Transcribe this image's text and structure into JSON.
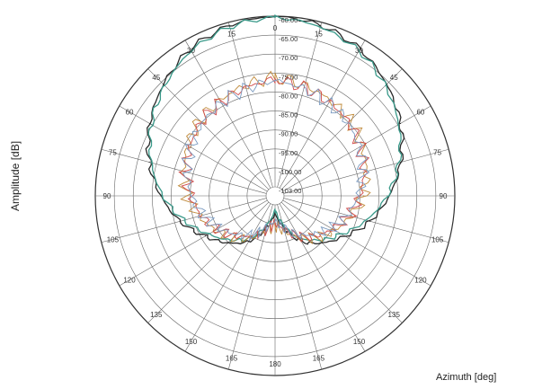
{
  "chart_data": {
    "type": "polar-line",
    "ylabel": "Amplitude [dB]",
    "xlabel": "Azimuth  [deg]",
    "angle_ticks_deg": [
      0,
      15,
      30,
      45,
      60,
      75,
      90,
      105,
      120,
      135,
      150,
      165,
      180,
      195,
      210,
      225,
      240,
      255,
      270,
      285,
      300,
      315,
      330,
      345
    ],
    "angle_tick_labels": [
      "0",
      "15",
      "30",
      "45",
      "60",
      "75",
      "90",
      "105",
      "120",
      "135",
      "150",
      "165",
      "180",
      "165",
      "150",
      "135",
      "120",
      "105",
      "90",
      "75",
      "60",
      "45",
      "30",
      "15"
    ],
    "radial_labels": [
      "-60.00",
      "-65.00",
      "-70.00",
      "-75.00",
      "-80.00",
      "-85.00",
      "-90.00",
      "-95.00",
      "-100.00",
      "-103.00"
    ],
    "radial_range_db": [
      -103,
      -60
    ],
    "grid": true,
    "series": [
      {
        "color": "#2a2a2a",
        "angles": [
          0,
          15,
          30,
          45,
          60,
          75,
          90,
          105,
          120,
          135,
          150,
          165,
          180,
          195,
          210,
          225,
          240,
          255,
          270,
          285,
          300,
          315,
          330,
          345
        ],
        "values": [
          -60.0,
          -60.8,
          -62.5,
          -65.5,
          -68.8,
          -72.5,
          -76.5,
          -80.5,
          -85.0,
          -88.5,
          -92.0,
          -97.0,
          -101.0,
          -97.0,
          -92.0,
          -88.5,
          -85.0,
          -80.5,
          -76.5,
          -72.5,
          -68.8,
          -65.5,
          -62.5,
          -60.8
        ]
      },
      {
        "color": "#3a9a8a",
        "angles": [
          0,
          15,
          30,
          45,
          60,
          75,
          90,
          105,
          120,
          135,
          150,
          165,
          180,
          195,
          210,
          225,
          240,
          255,
          270,
          285,
          300,
          315,
          330,
          345
        ],
        "values": [
          -60.3,
          -61.2,
          -63.0,
          -66.0,
          -69.3,
          -73.0,
          -77.0,
          -81.5,
          -86.0,
          -89.5,
          -93.0,
          -98.0,
          -102.0,
          -98.0,
          -93.0,
          -89.5,
          -86.0,
          -81.5,
          -77.0,
          -73.0,
          -69.3,
          -66.0,
          -63.0,
          -61.2
        ]
      },
      {
        "color": "#c08a3a",
        "angles": [
          0,
          15,
          30,
          45,
          60,
          75,
          90,
          105,
          120,
          135,
          150,
          165,
          180,
          195,
          210,
          225,
          240,
          255,
          270,
          285,
          300,
          315,
          330,
          345
        ],
        "values": [
          -75.5,
          -76.5,
          -77.5,
          -78.5,
          -80.0,
          -81.5,
          -83.0,
          -85.5,
          -88.0,
          -90.5,
          -93.0,
          -96.0,
          -98.0,
          -96.0,
          -93.0,
          -90.5,
          -88.0,
          -85.5,
          -83.0,
          -81.5,
          -80.0,
          -78.5,
          -77.5,
          -76.5
        ]
      },
      {
        "color": "#d04a4a",
        "angles": [
          0,
          15,
          30,
          45,
          60,
          75,
          90,
          105,
          120,
          135,
          150,
          165,
          180,
          195,
          210,
          225,
          240,
          255,
          270,
          285,
          300,
          315,
          330,
          345
        ],
        "values": [
          -76.0,
          -77.0,
          -78.0,
          -79.0,
          -80.5,
          -82.0,
          -84.0,
          -86.0,
          -88.5,
          -91.0,
          -93.5,
          -96.5,
          -98.5,
          -96.5,
          -93.5,
          -91.0,
          -88.5,
          -86.0,
          -84.0,
          -82.0,
          -80.5,
          -79.0,
          -78.0,
          -77.0
        ]
      },
      {
        "color": "#7a9ac0",
        "angles": [
          0,
          15,
          30,
          45,
          60,
          75,
          90,
          105,
          120,
          135,
          150,
          165,
          180,
          195,
          210,
          225,
          240,
          255,
          270,
          285,
          300,
          315,
          330,
          345
        ],
        "values": [
          -76.3,
          -77.3,
          -78.3,
          -79.3,
          -80.8,
          -82.3,
          -84.3,
          -86.5,
          -89.0,
          -91.5,
          -94.0,
          -97.0,
          -99.0,
          -97.0,
          -94.0,
          -91.5,
          -89.0,
          -86.5,
          -84.3,
          -82.3,
          -80.8,
          -79.3,
          -78.3,
          -77.3
        ]
      }
    ]
  }
}
